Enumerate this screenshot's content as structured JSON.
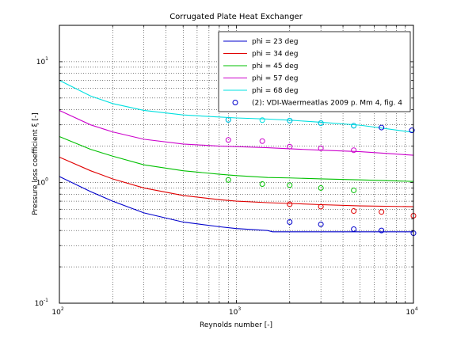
{
  "chart_data": {
    "type": "line",
    "title": "Corrugated Plate Heat Exchanger",
    "xlabel": "Reynolds number [-]",
    "ylabel": "Pressure loss coefficient ξ [-]",
    "x_scale": "log",
    "y_scale": "log",
    "xlim": [
      100,
      10000
    ],
    "ylim": [
      0.1,
      20
    ],
    "grid": true,
    "legend_position": "top-right",
    "x_ticks": [
      {
        "value": 100,
        "base": "10",
        "exp": "2"
      },
      {
        "value": 1000,
        "base": "10",
        "exp": "3"
      },
      {
        "value": 10000,
        "base": "10",
        "exp": "4"
      }
    ],
    "y_ticks": [
      {
        "value": 0.1,
        "base": "10",
        "exp": "-1"
      },
      {
        "value": 1,
        "base": "10",
        "exp": "0"
      },
      {
        "value": 10,
        "base": "10",
        "exp": "1"
      }
    ],
    "series": [
      {
        "name": "phi = 23 deg",
        "kind": "line",
        "color": "#0000cc",
        "x": [
          100,
          150,
          200,
          300,
          500,
          800,
          1000,
          1500,
          1600,
          2000,
          3000,
          5000,
          10000
        ],
        "y": [
          1.12,
          0.84,
          0.7,
          0.56,
          0.47,
          0.43,
          0.415,
          0.4,
          0.39,
          0.39,
          0.39,
          0.39,
          0.39
        ]
      },
      {
        "name": "phi = 34 deg",
        "kind": "line",
        "color": "#e00000",
        "x": [
          100,
          150,
          200,
          300,
          500,
          800,
          1000,
          1500,
          2000,
          3000,
          5000,
          10000
        ],
        "y": [
          1.62,
          1.25,
          1.07,
          0.9,
          0.78,
          0.72,
          0.7,
          0.68,
          0.67,
          0.655,
          0.64,
          0.63
        ]
      },
      {
        "name": "phi = 45 deg",
        "kind": "line",
        "color": "#00c000",
        "x": [
          100,
          150,
          200,
          300,
          500,
          800,
          1000,
          1500,
          2000,
          3000,
          5000,
          10000
        ],
        "y": [
          2.4,
          1.88,
          1.65,
          1.4,
          1.25,
          1.17,
          1.14,
          1.1,
          1.09,
          1.07,
          1.05,
          1.02
        ]
      },
      {
        "name": "phi = 57 deg",
        "kind": "line",
        "color": "#cc00cc",
        "x": [
          100,
          150,
          200,
          300,
          500,
          800,
          1000,
          1500,
          2000,
          3000,
          5000,
          10000
        ],
        "y": [
          3.95,
          3.0,
          2.62,
          2.28,
          2.08,
          2.0,
          1.98,
          1.94,
          1.9,
          1.85,
          1.8,
          1.68
        ]
      },
      {
        "name": "phi = 68 deg",
        "kind": "line",
        "color": "#00e0e0",
        "x": [
          100,
          150,
          200,
          300,
          500,
          800,
          1000,
          1500,
          2000,
          3000,
          5000,
          10000
        ],
        "y": [
          7.0,
          5.2,
          4.5,
          3.95,
          3.62,
          3.48,
          3.42,
          3.35,
          3.28,
          3.15,
          2.98,
          2.6
        ]
      },
      {
        "name": "(2): VDI-Waermeatlas 2009 p. Mm 4, fig. 4",
        "kind": "markers",
        "color": "#0000cc",
        "x": [
          900,
          2000,
          3000,
          4600,
          6600,
          9800
        ],
        "y": [
          3.3,
          3.25,
          3.1,
          2.95,
          2.85,
          2.7
        ]
      },
      {
        "kind": "markers",
        "color": "#0000cc",
        "x": [
          2000,
          3000,
          4600,
          6600,
          10000
        ],
        "y": [
          0.47,
          0.45,
          0.41,
          0.4,
          0.38
        ]
      },
      {
        "kind": "markers",
        "color": "#e00000",
        "x": [
          2000,
          3000,
          4600,
          6600,
          10000
        ],
        "y": [
          0.66,
          0.63,
          0.58,
          0.57,
          0.53
        ]
      },
      {
        "kind": "markers",
        "color": "#00c000",
        "x": [
          900,
          1400,
          2000,
          3000,
          4600
        ],
        "y": [
          1.05,
          0.97,
          0.95,
          0.9,
          0.86
        ]
      },
      {
        "kind": "markers",
        "color": "#cc00cc",
        "x": [
          900,
          1400,
          2000,
          3000,
          4600
        ],
        "y": [
          2.25,
          2.2,
          1.98,
          1.92,
          1.85
        ]
      },
      {
        "kind": "markers",
        "color": "#00e0e0",
        "x": [
          900,
          1400,
          2000,
          3000,
          4600
        ],
        "y": [
          3.3,
          3.28,
          3.25,
          3.1,
          2.95
        ]
      }
    ]
  }
}
